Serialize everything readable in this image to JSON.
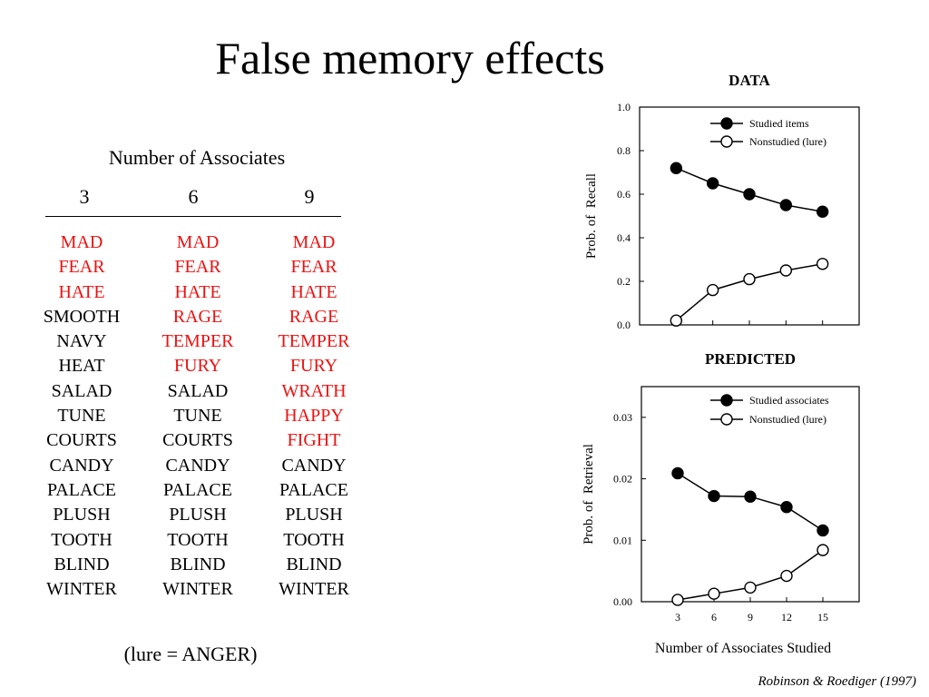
{
  "title": "False memory effects",
  "lists": {
    "header": "Number of Associates",
    "columns": [
      {
        "label": "3",
        "words": [
          {
            "text": "MAD",
            "lure": true
          },
          {
            "text": "FEAR",
            "lure": true
          },
          {
            "text": "HATE",
            "lure": true
          },
          {
            "text": "SMOOTH",
            "lure": false
          },
          {
            "text": "NAVY",
            "lure": false
          },
          {
            "text": "HEAT",
            "lure": false
          },
          {
            "text": "SALAD",
            "lure": false
          },
          {
            "text": "TUNE",
            "lure": false
          },
          {
            "text": "COURTS",
            "lure": false
          },
          {
            "text": "CANDY",
            "lure": false
          },
          {
            "text": "PALACE",
            "lure": false
          },
          {
            "text": "PLUSH",
            "lure": false
          },
          {
            "text": "TOOTH",
            "lure": false
          },
          {
            "text": "BLIND",
            "lure": false
          },
          {
            "text": "WINTER",
            "lure": false
          }
        ]
      },
      {
        "label": "6",
        "words": [
          {
            "text": "MAD",
            "lure": true
          },
          {
            "text": "FEAR",
            "lure": true
          },
          {
            "text": "HATE",
            "lure": true
          },
          {
            "text": "RAGE",
            "lure": true
          },
          {
            "text": "TEMPER",
            "lure": true
          },
          {
            "text": "FURY",
            "lure": true
          },
          {
            "text": "SALAD",
            "lure": false
          },
          {
            "text": "TUNE",
            "lure": false
          },
          {
            "text": "COURTS",
            "lure": false
          },
          {
            "text": "CANDY",
            "lure": false
          },
          {
            "text": "PALACE",
            "lure": false
          },
          {
            "text": "PLUSH",
            "lure": false
          },
          {
            "text": "TOOTH",
            "lure": false
          },
          {
            "text": "BLIND",
            "lure": false
          },
          {
            "text": "WINTER",
            "lure": false
          }
        ]
      },
      {
        "label": "9",
        "words": [
          {
            "text": "MAD",
            "lure": true
          },
          {
            "text": "FEAR",
            "lure": true
          },
          {
            "text": "HATE",
            "lure": true
          },
          {
            "text": "RAGE",
            "lure": true
          },
          {
            "text": "TEMPER",
            "lure": true
          },
          {
            "text": "FURY",
            "lure": true
          },
          {
            "text": "WRATH",
            "lure": true
          },
          {
            "text": "HAPPY",
            "lure": true
          },
          {
            "text": "FIGHT",
            "lure": true
          },
          {
            "text": "CANDY",
            "lure": false
          },
          {
            "text": "PALACE",
            "lure": false
          },
          {
            "text": "PLUSH",
            "lure": false
          },
          {
            "text": "TOOTH",
            "lure": false
          },
          {
            "text": "BLIND",
            "lure": false
          },
          {
            "text": "WINTER",
            "lure": false
          }
        ]
      }
    ],
    "lure_color": "#ee1111",
    "note": "(lure = ANGER)"
  },
  "citation": "Robinson & Roediger (1997)",
  "chart_data": [
    {
      "type": "line",
      "title": "DATA",
      "xlabel": "",
      "ylabel": "Prob. of  Recall",
      "x": [
        3,
        6,
        9,
        12,
        15
      ],
      "xticks": [
        3,
        6,
        9,
        12,
        15
      ],
      "xlim": [
        0,
        18
      ],
      "ylim": [
        0,
        1
      ],
      "yticks": [
        "0.0",
        "0.2",
        "0.4",
        "0.6",
        "0.8",
        "1.0"
      ],
      "show_x_tick_labels": false,
      "legend_position": "top-right",
      "series": [
        {
          "name": "Studied items",
          "marker": "filled-circle",
          "values": [
            0.72,
            0.65,
            0.6,
            0.55,
            0.52
          ]
        },
        {
          "name": "Nonstudied (lure)",
          "marker": "open-circle",
          "values": [
            0.02,
            0.16,
            0.21,
            0.25,
            0.28
          ]
        }
      ]
    },
    {
      "type": "line",
      "title": "PREDICTED",
      "xlabel": "Number of Associates Studied",
      "ylabel": "Prob. of  Retrieval",
      "x": [
        3,
        6,
        9,
        12,
        15
      ],
      "xticks": [
        3,
        6,
        9,
        12,
        15
      ],
      "xlim": [
        0,
        18
      ],
      "ylim": [
        0,
        0.035
      ],
      "yticks": [
        "0.00",
        "0.01",
        "0.02",
        "0.03"
      ],
      "show_x_tick_labels": true,
      "legend_position": "top-right",
      "series": [
        {
          "name": "Studied associates",
          "marker": "filled-circle",
          "values": [
            0.0209,
            0.0172,
            0.0171,
            0.0154,
            0.0116
          ]
        },
        {
          "name": "Nonstudied (lure)",
          "marker": "open-circle",
          "values": [
            0.0003,
            0.0013,
            0.0023,
            0.0042,
            0.0084
          ]
        }
      ]
    }
  ]
}
